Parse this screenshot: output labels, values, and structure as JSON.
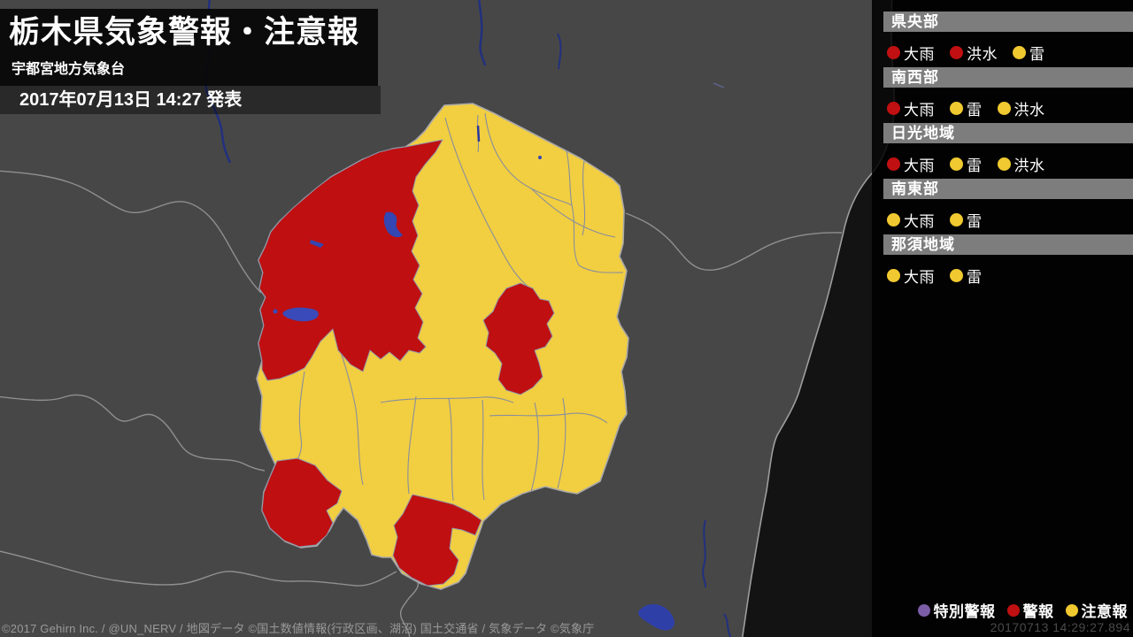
{
  "header": {
    "title": "栃木県気象警報・注意報",
    "subtitle": "宇都宮地方気象台",
    "issued": "2017年07月13日 14:27 発表"
  },
  "regions": [
    {
      "name": "県央部",
      "warnings": [
        {
          "label": "大雨",
          "level": "warning"
        },
        {
          "label": "洪水",
          "level": "warning"
        },
        {
          "label": "雷",
          "level": "advisory"
        }
      ]
    },
    {
      "name": "南西部",
      "warnings": [
        {
          "label": "大雨",
          "level": "warning"
        },
        {
          "label": "雷",
          "level": "advisory"
        },
        {
          "label": "洪水",
          "level": "advisory"
        }
      ]
    },
    {
      "name": "日光地域",
      "warnings": [
        {
          "label": "大雨",
          "level": "warning"
        },
        {
          "label": "雷",
          "level": "advisory"
        },
        {
          "label": "洪水",
          "level": "advisory"
        }
      ]
    },
    {
      "name": "南東部",
      "warnings": [
        {
          "label": "大雨",
          "level": "advisory"
        },
        {
          "label": "雷",
          "level": "advisory"
        }
      ]
    },
    {
      "name": "那須地域",
      "warnings": [
        {
          "label": "大雨",
          "level": "advisory"
        },
        {
          "label": "雷",
          "level": "advisory"
        }
      ]
    }
  ],
  "legend": [
    {
      "label": "特別警報",
      "level": "special"
    },
    {
      "label": "警報",
      "level": "warning"
    },
    {
      "label": "注意報",
      "level": "advisory"
    }
  ],
  "colors": {
    "special": "#7b5ca6",
    "warning": "#c11011",
    "advisory": "#f0c930",
    "map_warning": "#bf0f10",
    "map_advisory": "#f2ce41"
  },
  "footer": {
    "copyright": "©2017 Gehirn Inc. / @UN_NERV / 地図データ ©国土数値情報(行政区画、湖沼) 国土交通省 / 気象データ ©気象庁",
    "timestamp": "20170713 14:29:27.894"
  }
}
